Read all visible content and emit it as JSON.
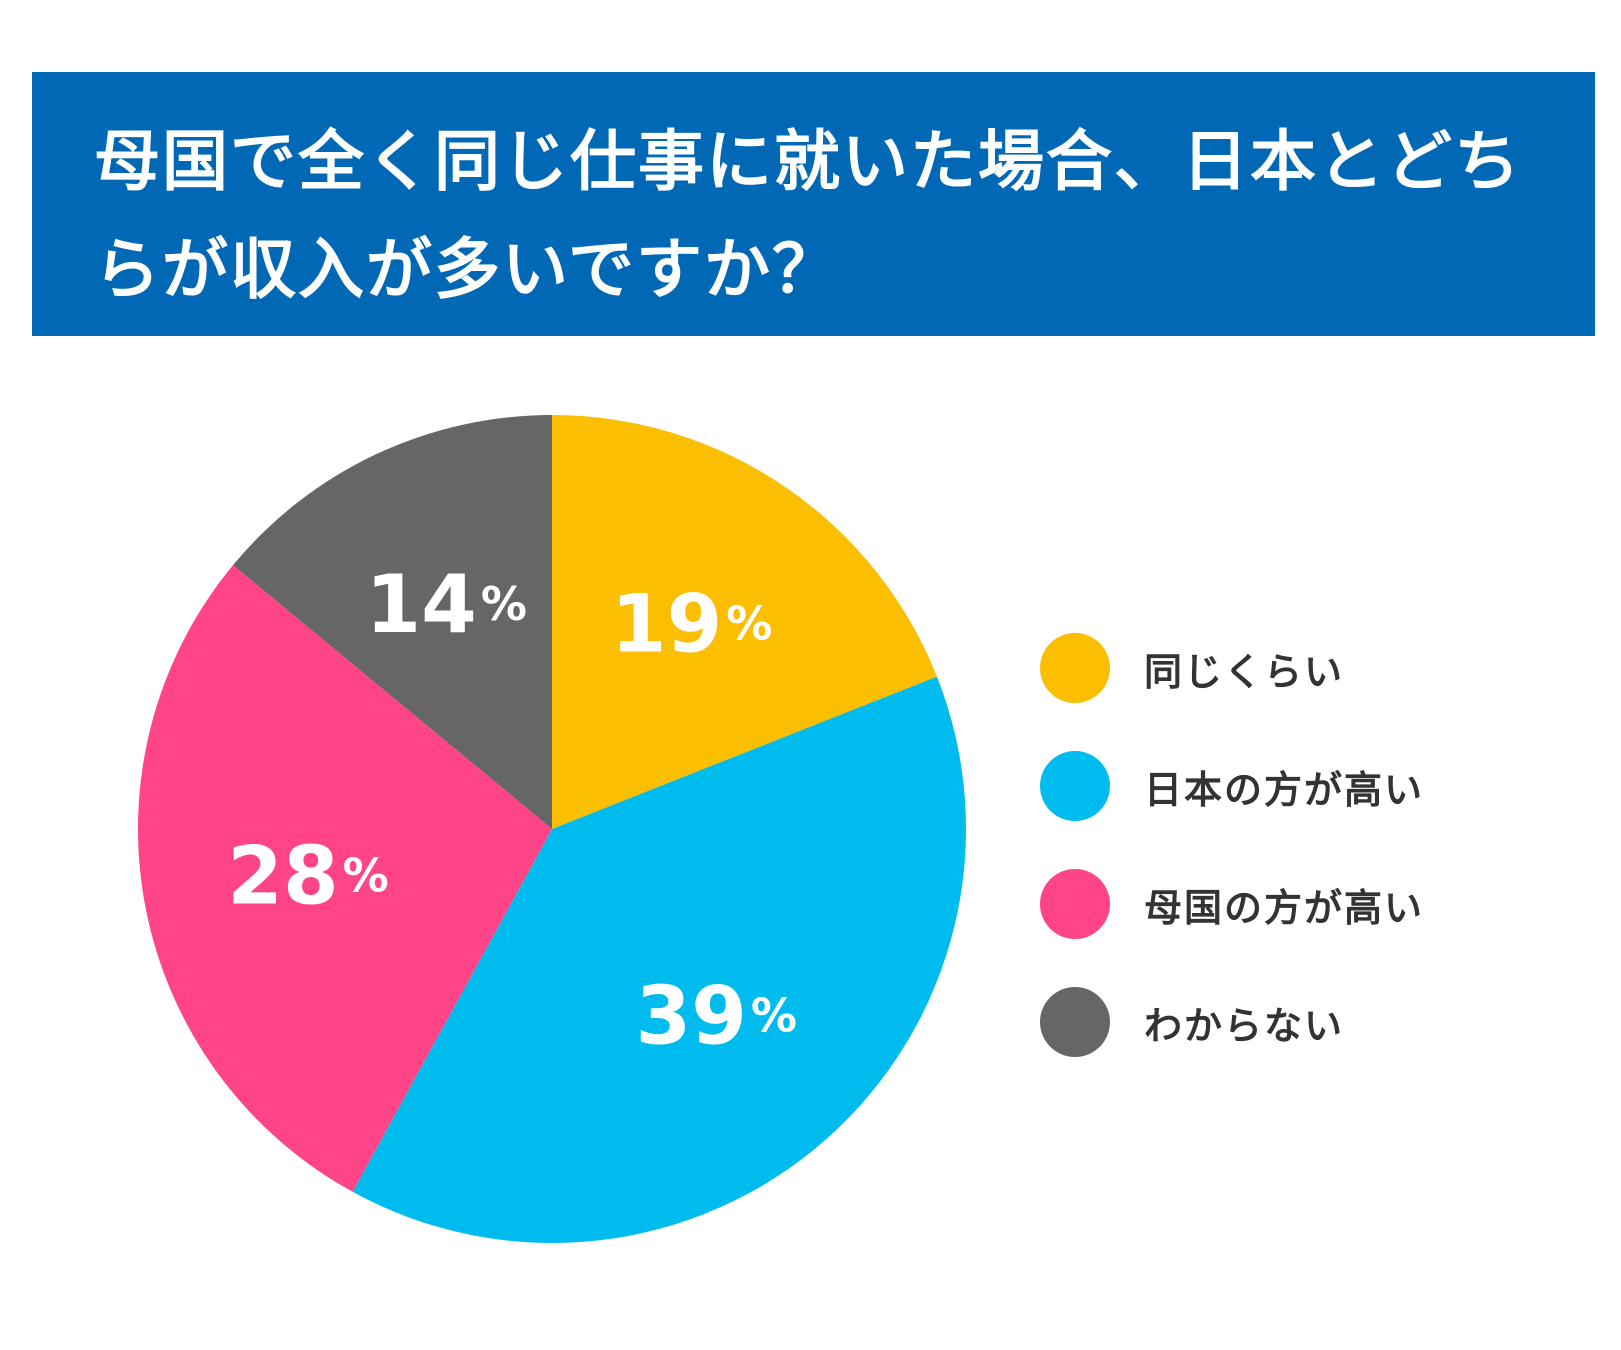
{
  "title": "母国で全く同じ仕事に就いた場合、日本とどちらが収入が多いですか？",
  "chart_data": {
    "type": "pie",
    "title": "母国で全く同じ仕事に就いた場合、日本とどちらが収入が多いですか？",
    "unit": "%",
    "slices": [
      {
        "name": "同じくらい",
        "value": 19,
        "color": "#fbbe00"
      },
      {
        "name": "日本の方が高い",
        "value": 39,
        "color": "#00bcee"
      },
      {
        "name": "母国の方が高い",
        "value": 28,
        "color": "#ff4487"
      },
      {
        "name": "わからない",
        "value": 14,
        "color": "#666666"
      }
    ],
    "start": "12 o'clock",
    "direction": "clockwise",
    "legend_position": "right"
  }
}
